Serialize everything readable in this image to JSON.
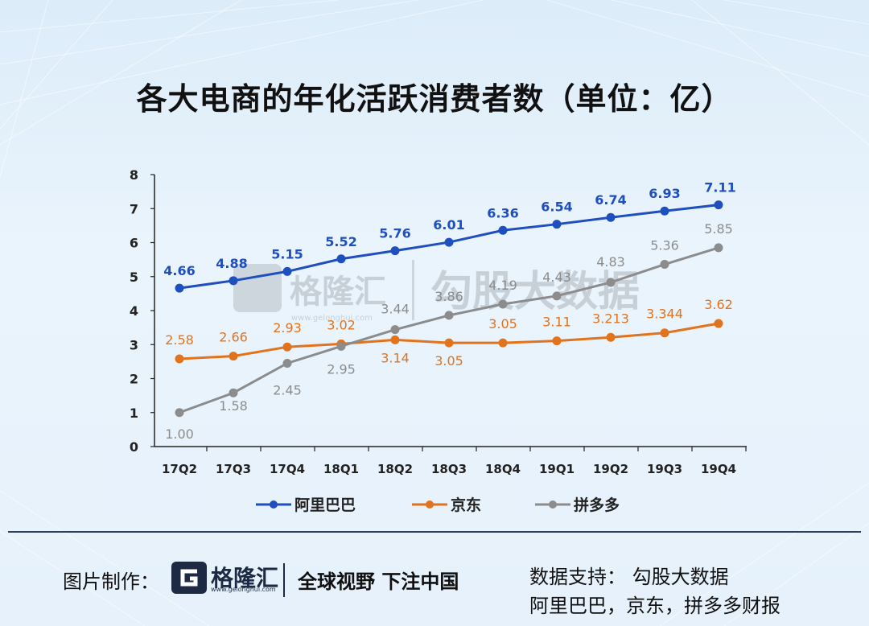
{
  "title": "各大电商的年化活跃消费者数（单位：亿）",
  "watermark": {
    "brand": "格隆汇",
    "url": "www.gelonghui.com",
    "text": "勾股大数据"
  },
  "footer": {
    "credit_label": "图片制作：",
    "logo_text": "格隆汇",
    "logo_url": "www.gelonghui.com",
    "slogan": "全球视野 下注中国",
    "source_line1": "数据支持： 勾股大数据",
    "source_line2": "阿里巴巴，京东，拼多多财报"
  },
  "colors": {
    "alibaba": "#1f4fbf",
    "jd": "#e2731d",
    "pdd": "#8c8c8c"
  },
  "chart_data": {
    "type": "line",
    "title": "各大电商的年化活跃消费者数（单位：亿）",
    "categories": [
      "17Q2",
      "17Q3",
      "17Q4",
      "18Q1",
      "18Q2",
      "18Q3",
      "18Q4",
      "19Q1",
      "19Q2",
      "19Q3",
      "19Q4"
    ],
    "ylim": [
      0,
      8
    ],
    "yticks": [
      "0",
      "1",
      "2",
      "3",
      "4",
      "5",
      "6",
      "7",
      "8"
    ],
    "grid": false,
    "legend_position": "bottom",
    "series": [
      {
        "name": "阿里巴巴",
        "color": "#1f4fbf",
        "values": [
          4.66,
          4.88,
          5.15,
          5.52,
          5.76,
          6.01,
          6.36,
          6.54,
          6.74,
          6.93,
          7.11
        ],
        "labels": [
          "4.66",
          "4.88",
          "5.15",
          "5.52",
          "5.76",
          "6.01",
          "6.36",
          "6.54",
          "6.74",
          "6.93",
          "7.11"
        ]
      },
      {
        "name": "京东",
        "color": "#e2731d",
        "values": [
          2.58,
          2.66,
          2.93,
          3.02,
          3.14,
          3.05,
          3.05,
          3.11,
          3.213,
          3.344,
          3.62
        ],
        "labels": [
          "2.58",
          "2.66",
          "2.93",
          "3.02",
          "3.14",
          "3.05",
          "3.05",
          "3.11",
          "3.213",
          "3.344",
          "3.62"
        ]
      },
      {
        "name": "拼多多",
        "color": "#8c8c8c",
        "values": [
          1.0,
          1.58,
          2.45,
          2.95,
          3.44,
          3.86,
          4.19,
          4.43,
          4.83,
          5.36,
          5.85
        ],
        "labels": [
          "1.00",
          "1.58",
          "2.45",
          "2.95",
          "3.44",
          "3.86",
          "4.19",
          "4.43",
          "4.83",
          "5.36",
          "5.85"
        ]
      }
    ]
  }
}
